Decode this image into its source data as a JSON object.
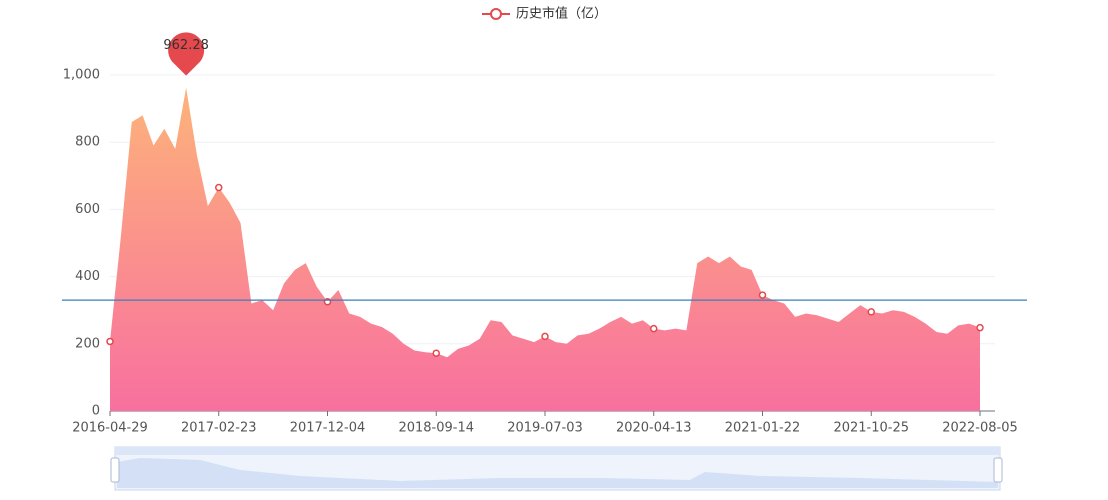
{
  "chart_data": {
    "type": "area",
    "categories": [
      "2016-04-29",
      null,
      null,
      null,
      null,
      null,
      null,
      null,
      null,
      null,
      "2017-02-23",
      null,
      null,
      null,
      null,
      null,
      null,
      null,
      null,
      null,
      "2017-12-04",
      null,
      null,
      null,
      null,
      null,
      null,
      null,
      null,
      null,
      "2018-09-14",
      null,
      null,
      null,
      null,
      null,
      null,
      null,
      null,
      null,
      "2019-07-03",
      null,
      null,
      null,
      null,
      null,
      null,
      null,
      null,
      null,
      "2020-04-13",
      null,
      null,
      null,
      null,
      null,
      null,
      null,
      null,
      null,
      "2021-01-22",
      null,
      null,
      null,
      null,
      null,
      null,
      null,
      null,
      null,
      "2021-10-25",
      null,
      null,
      null,
      null,
      null,
      null,
      null,
      null,
      null,
      "2022-08-05"
    ],
    "series": [
      {
        "name": "历史市值（亿）",
        "color": "#e5484d",
        "values": [
          207,
          520,
          860,
          880,
          790,
          840,
          780,
          962.28,
          760,
          610,
          665,
          620,
          560,
          320,
          330,
          300,
          380,
          420,
          440,
          370,
          325,
          360,
          290,
          280,
          260,
          250,
          230,
          200,
          180,
          175,
          172,
          160,
          185,
          195,
          215,
          270,
          265,
          225,
          215,
          205,
          222,
          205,
          200,
          225,
          230,
          245,
          265,
          280,
          260,
          270,
          245,
          240,
          245,
          240,
          440,
          460,
          440,
          460,
          430,
          420,
          345,
          330,
          320,
          280,
          290,
          285,
          275,
          265,
          290,
          315,
          295,
          290,
          300,
          295,
          280,
          260,
          235,
          230,
          255,
          260,
          248
        ]
      }
    ],
    "average_line": 330,
    "ylim": [
      0,
      1000
    ],
    "yticks": [
      0,
      200,
      400,
      600,
      800,
      {
        "value": 1000,
        "label": "1,000"
      }
    ],
    "grid": true
  }
}
